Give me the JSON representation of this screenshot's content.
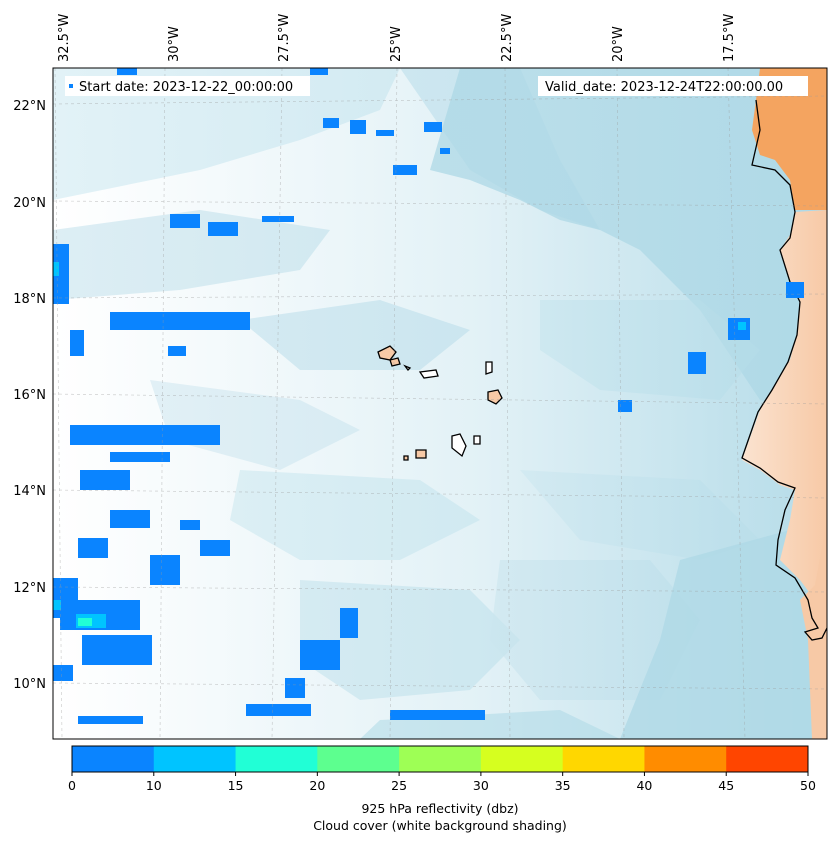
{
  "map": {
    "start_date_label": "Start date: 2023-12-22_00:00:00",
    "valid_date_label": "Valid_date: 2023-12-24T22:00:00.00",
    "longitude_labels": [
      "32.5°W",
      "30°W",
      "27.5°W",
      "25°W",
      "22.5°W",
      "20°W",
      "17.5°W"
    ],
    "latitude_labels": [
      "22°N",
      "20°N",
      "18°N",
      "16°N",
      "14°N",
      "12°N",
      "10°N"
    ]
  },
  "colorbar": {
    "ticks": [
      "0",
      "10",
      "15",
      "20",
      "25",
      "30",
      "35",
      "40",
      "45",
      "50"
    ],
    "colors": [
      "#0a84ff",
      "#00c4ff",
      "#21ffd6",
      "#5dff8f",
      "#9eff55",
      "#d6ff1f",
      "#ffd700",
      "#ff8c00",
      "#ff4500"
    ],
    "label_line1": "925 hPa reflectivity (dbz)",
    "label_line2": "Cloud cover (white background shading)"
  },
  "colors": {
    "ocean_cloud": "#add8e6",
    "land": "#f4a460",
    "reflectivity_low": "#0a84ff",
    "reflectivity_mid": "#00c4ff",
    "reflectivity_high": "#21ffd6"
  }
}
